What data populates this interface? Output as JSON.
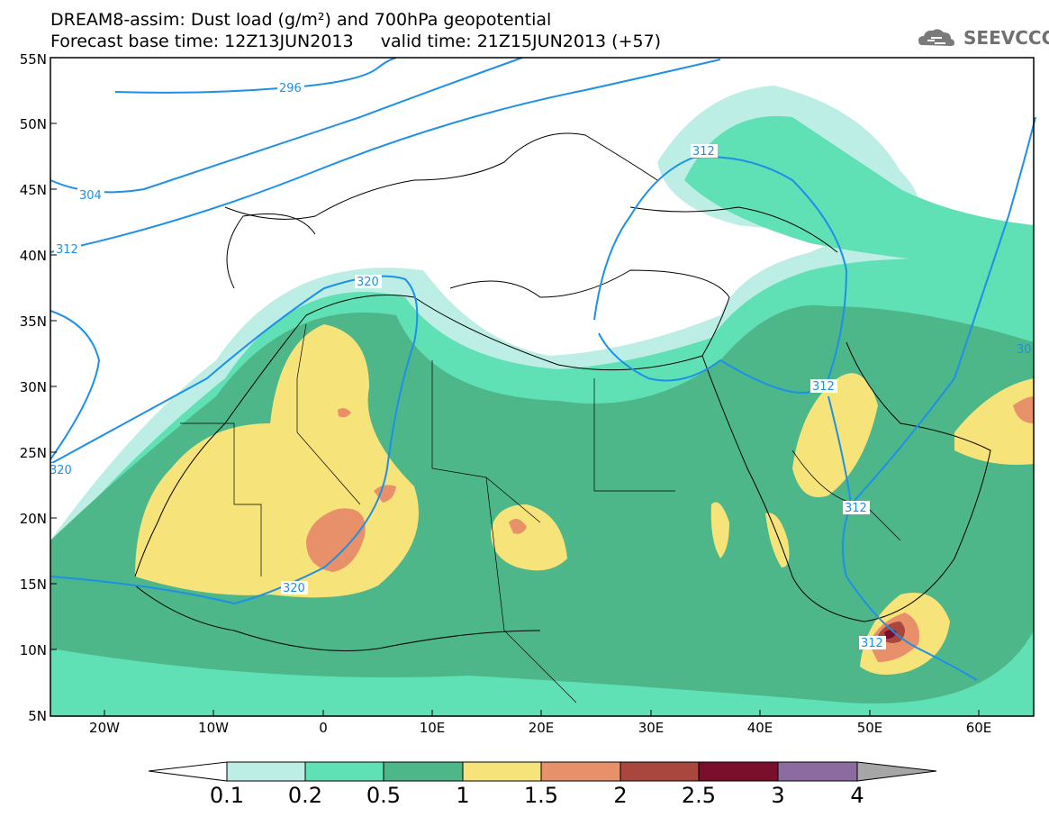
{
  "title_line1": "DREAM8-assim: Dust load (g/m²) and 700hPa geopotential",
  "title_line2": "Forecast base time: 12Z13JUN2013     valid time: 21Z15JUN2013 (+57)",
  "logo_text": "SEEVCCC",
  "lat_labels": [
    "55N",
    "50N",
    "45N",
    "40N",
    "35N",
    "30N",
    "25N",
    "20N",
    "15N",
    "10N",
    "5N"
  ],
  "lon_labels": [
    "20W",
    "10W",
    "0",
    "10E",
    "20E",
    "30E",
    "40E",
    "50E",
    "60E"
  ],
  "contour_labels": [
    "296",
    "304",
    "312",
    "320",
    "312",
    "320",
    "312",
    "312",
    "312",
    "30"
  ],
  "legend": {
    "thresholds": [
      "0.1",
      "0.2",
      "0.5",
      "1",
      "1.5",
      "2",
      "2.5",
      "3",
      "4"
    ],
    "colors": [
      "#ffffff",
      "#bdeee5",
      "#5fe0b5",
      "#4db78a",
      "#f6e37a",
      "#e8906a",
      "#a9473f",
      "#7a0f2b",
      "#8c6ba0",
      "#a6a6a6"
    ]
  }
}
